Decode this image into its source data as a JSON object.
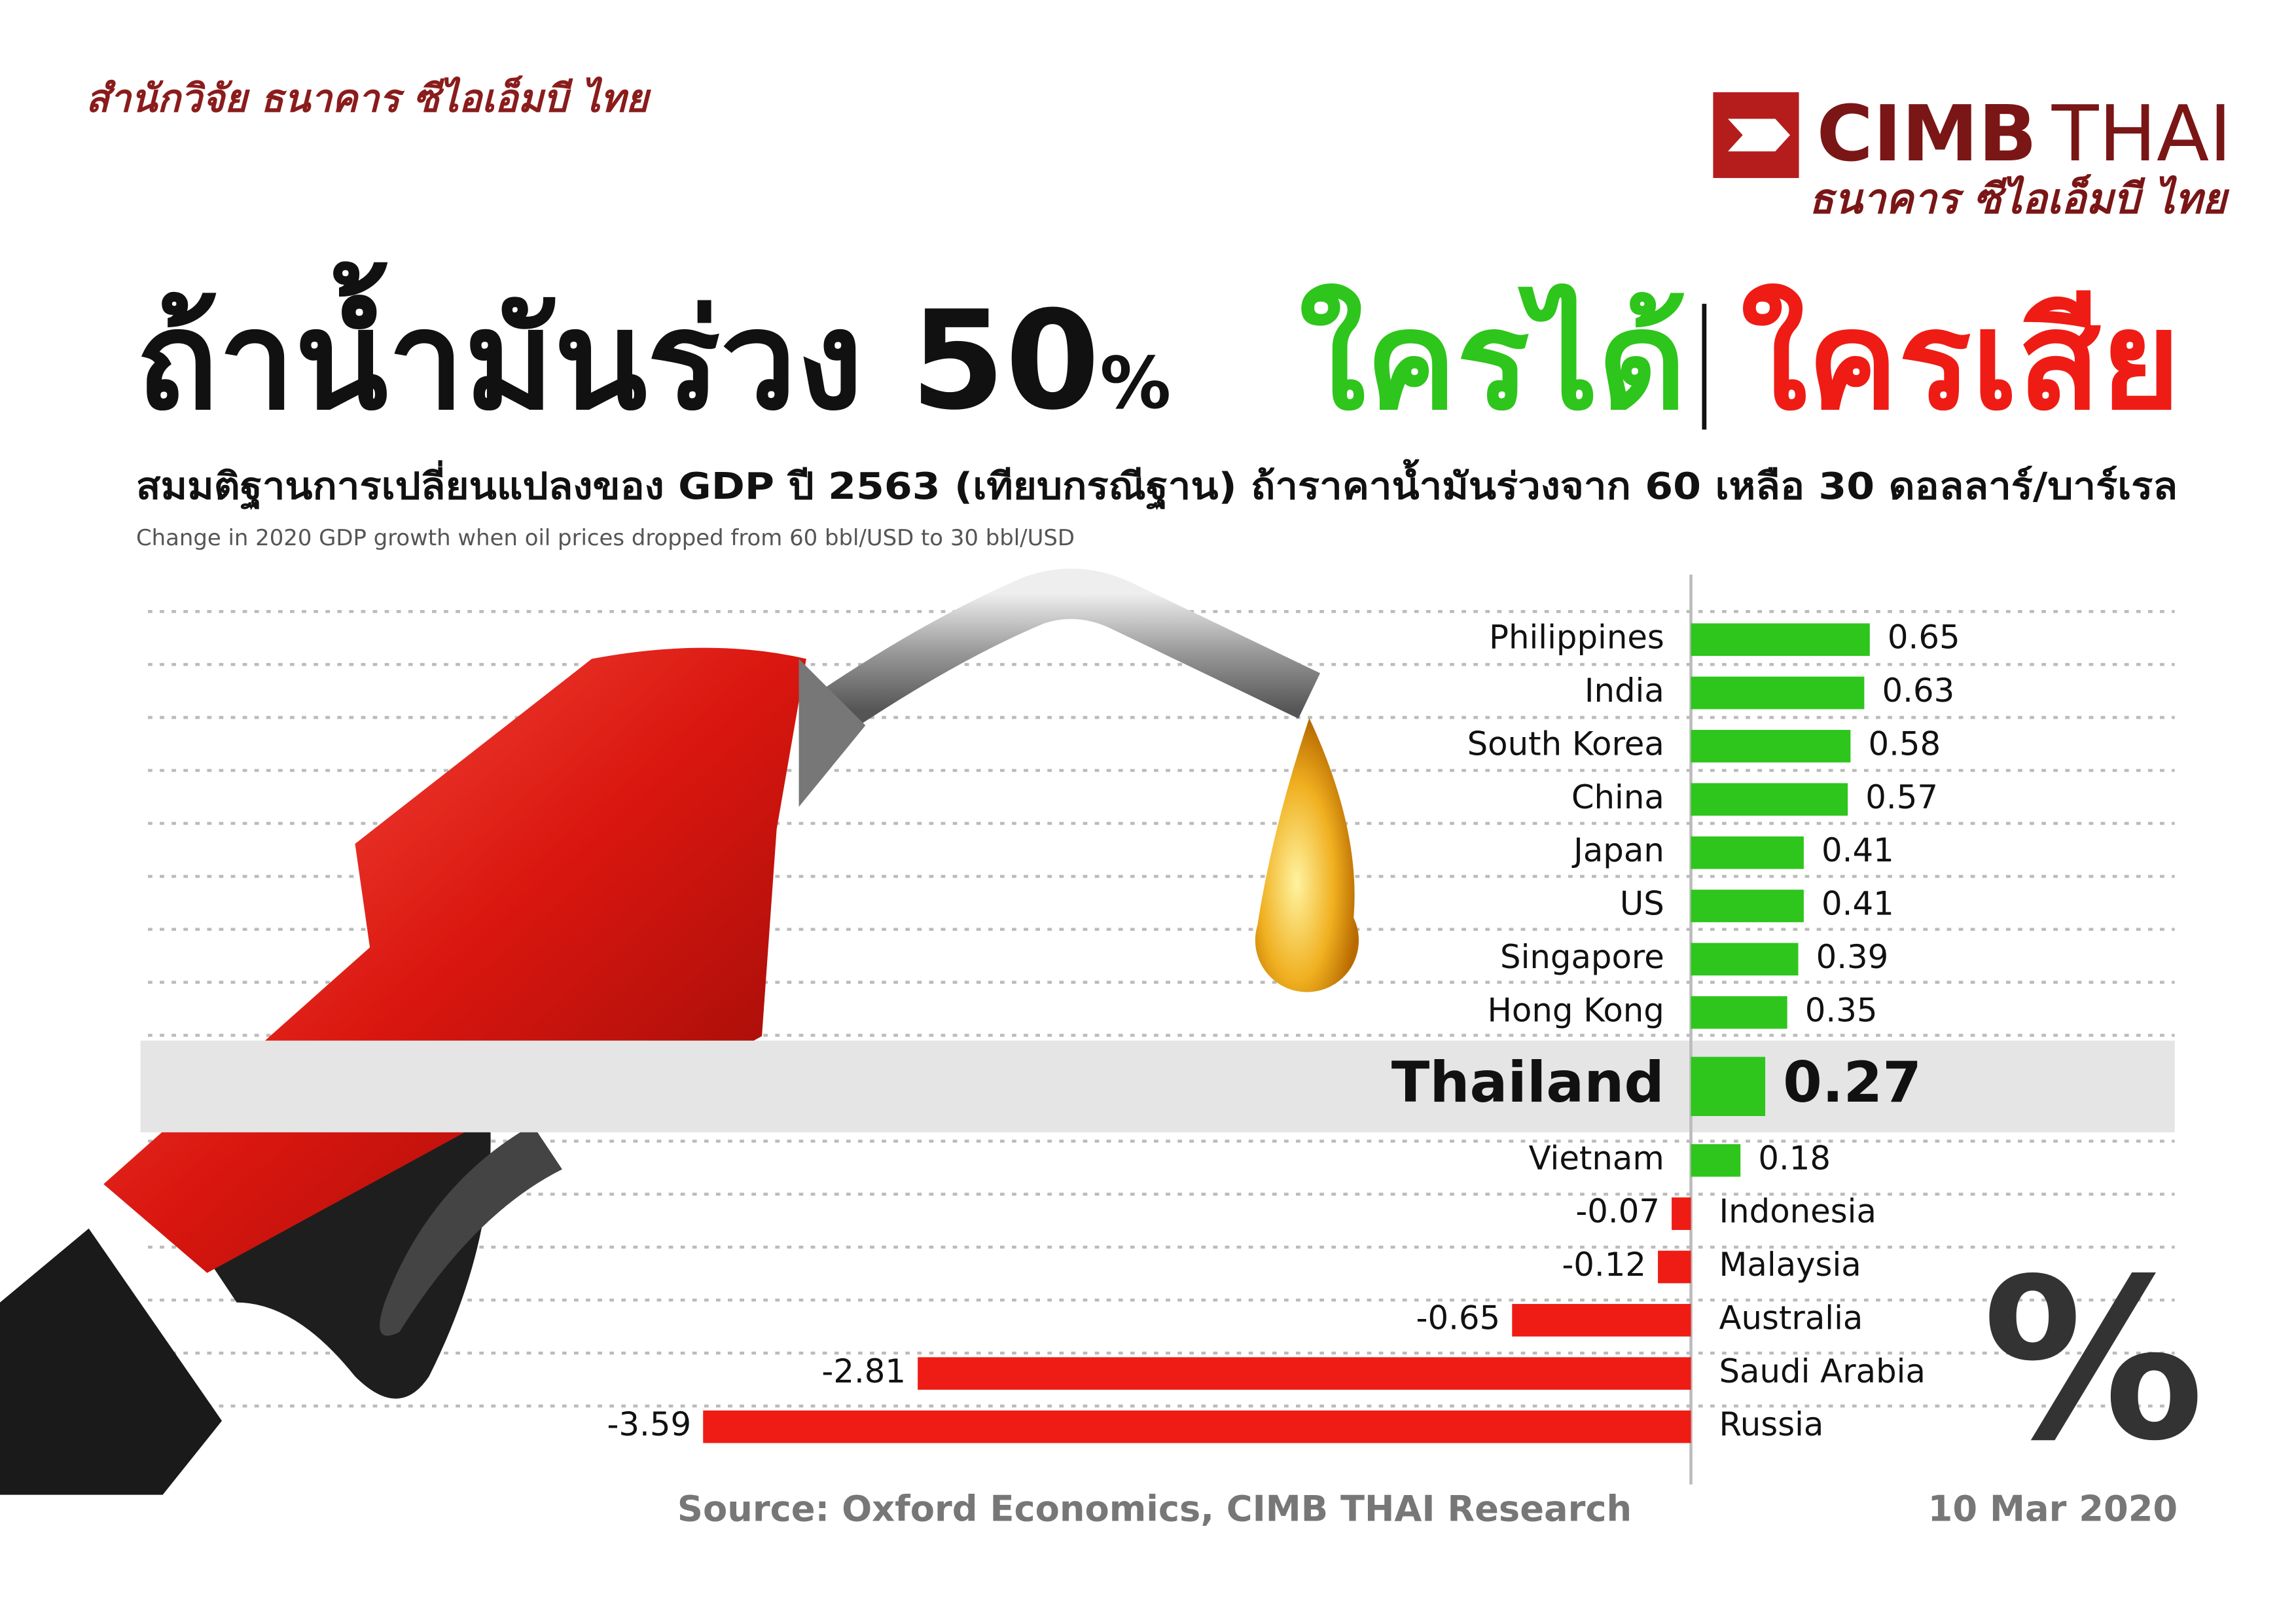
{
  "header": {
    "research_unit": "สำนักวิจัย ธนาคาร ซีไอเอ็มบี ไทย",
    "logo": {
      "brand": "CIMB",
      "country": "THAI",
      "bank_name": "ธนาคาร ซีไอเอ็มบี ไทย"
    }
  },
  "chart_data": {
    "type": "bar",
    "orientation": "horizontal",
    "title": {
      "main": "ถ้าน้ำมันร่วง 50",
      "percent": "%",
      "gainers": "ใครได้",
      "losers": "ใครเสีย"
    },
    "subtitle": "สมมติฐานการเปลี่ยนแปลงของ GDP ปี 2563 (เทียบกรณีฐาน) ถ้าราคาน้ำมันร่วงจาก 60 เหลือ 30 ดอลลาร์/บาร์เรล",
    "subtitle_en": "Change in 2020 GDP growth when oil prices dropped from 60 bbl/USD to 30 bbl/USD",
    "categories": [
      "Philippines",
      "India",
      "South Korea",
      "China",
      "Japan",
      "US",
      "Singapore",
      "Hong Kong",
      "Thailand",
      "Vietnam",
      "Indonesia",
      "Malaysia",
      "Australia",
      "Saudi Arabia",
      "Russia"
    ],
    "values": [
      0.65,
      0.63,
      0.58,
      0.57,
      0.41,
      0.41,
      0.39,
      0.35,
      0.27,
      0.18,
      -0.07,
      -0.12,
      -0.65,
      -2.81,
      -3.59
    ],
    "positive_color": "#2ec51c",
    "negative_color": "#ee1c14",
    "highlight_index": 8,
    "unit_label": "%",
    "source": "Source: Oxford Economics, CIMB THAI Research",
    "date": "10 Mar 2020"
  }
}
